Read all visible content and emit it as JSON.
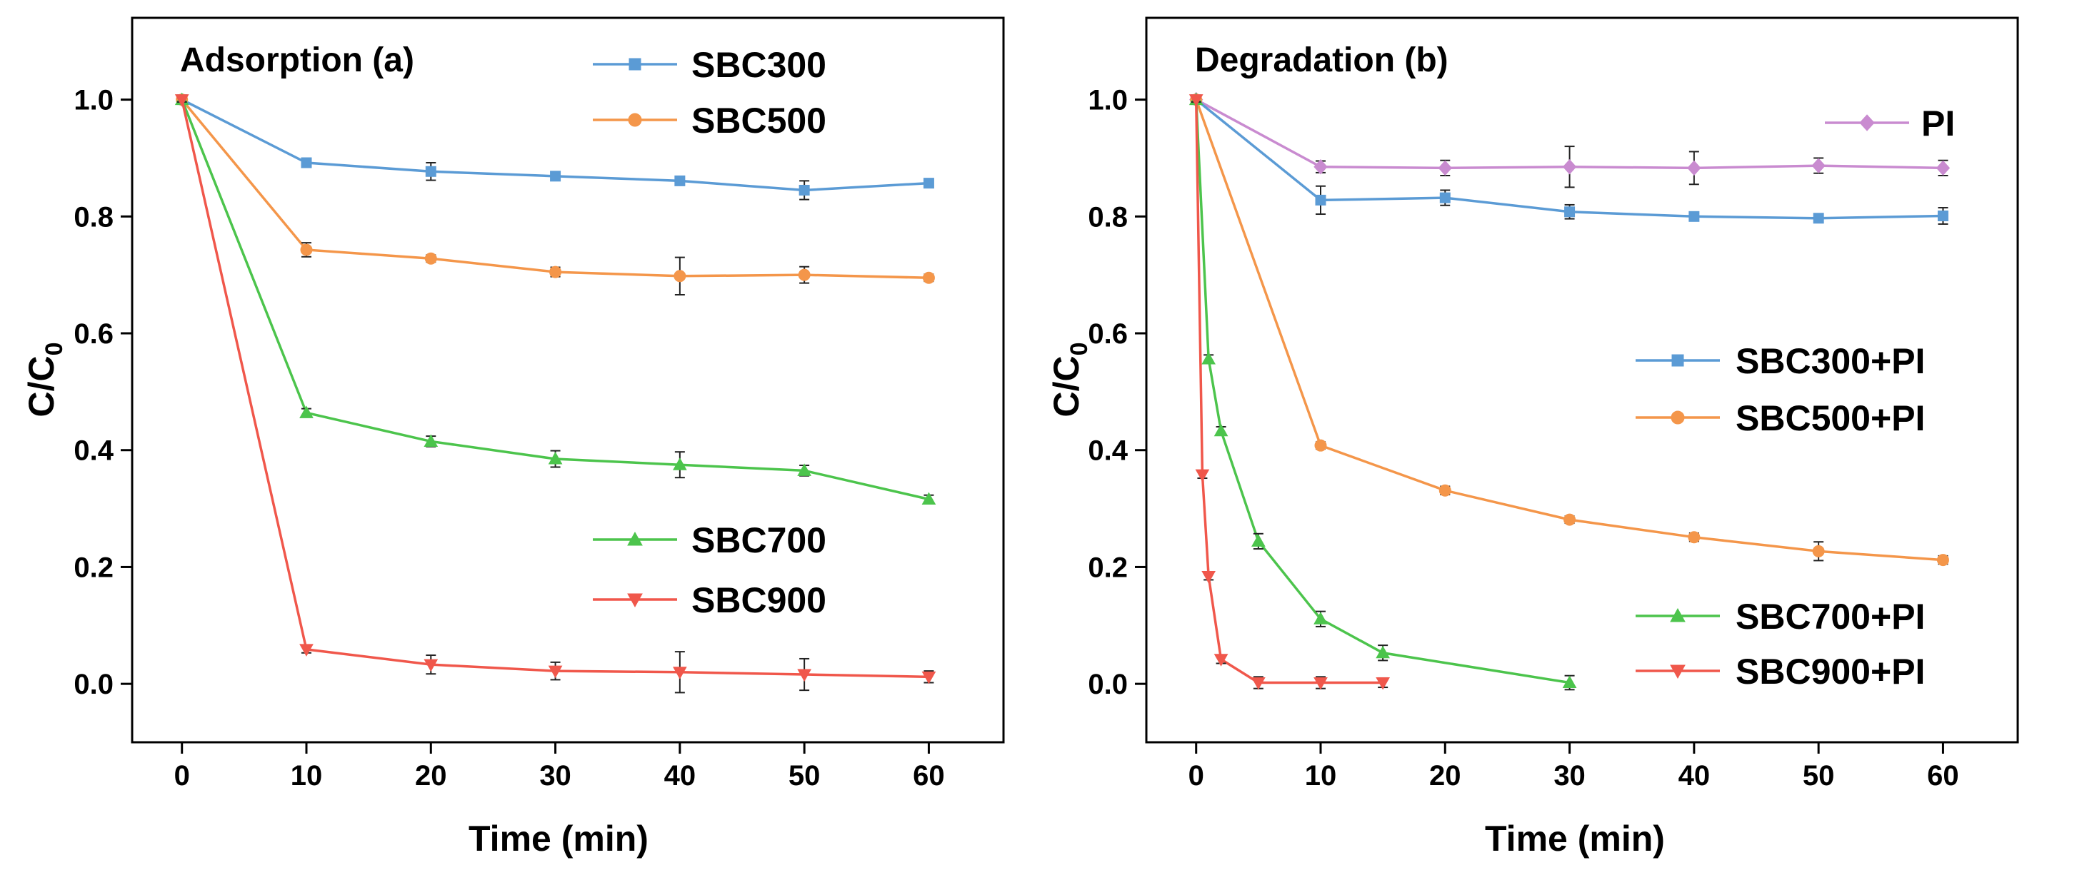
{
  "chart_data": [
    {
      "type": "line",
      "title": "Adsorption (a)",
      "xlabel": "Time (min)",
      "ylabel": "C/C0",
      "ylabel_main": "C/C",
      "ylabel_sub": "0",
      "xlim": [
        -4,
        66
      ],
      "ylim": [
        -0.1,
        1.14
      ],
      "xticks": [
        0,
        10,
        20,
        30,
        40,
        50,
        60
      ],
      "yticks": [
        0.0,
        0.2,
        0.4,
        0.6,
        0.8,
        1.0
      ],
      "xtick_labels": [
        "0",
        "10",
        "20",
        "30",
        "40",
        "50",
        "60"
      ],
      "ytick_labels": [
        "0.0",
        "0.2",
        "0.4",
        "0.6",
        "0.8",
        "1.0"
      ],
      "series": [
        {
          "name": "SBC300",
          "color": "#5b9bd5",
          "marker": "square",
          "x": [
            0,
            10,
            20,
            30,
            40,
            50,
            60
          ],
          "y": [
            1.0,
            0.892,
            0.877,
            0.869,
            0.861,
            0.845,
            0.857
          ],
          "err": [
            0.004,
            0.006,
            0.015,
            0.007,
            0.006,
            0.016,
            0.006
          ]
        },
        {
          "name": "SBC500",
          "color": "#f4964a",
          "marker": "circle",
          "x": [
            0,
            10,
            20,
            30,
            40,
            50,
            60
          ],
          "y": [
            1.0,
            0.743,
            0.728,
            0.705,
            0.698,
            0.7,
            0.695
          ],
          "err": [
            0.004,
            0.012,
            0.006,
            0.008,
            0.032,
            0.014,
            0.006
          ]
        },
        {
          "name": "SBC700",
          "color": "#4cc44c",
          "marker": "triangle-up",
          "x": [
            0,
            10,
            20,
            30,
            40,
            50,
            60
          ],
          "y": [
            1.0,
            0.464,
            0.415,
            0.385,
            0.375,
            0.365,
            0.316
          ],
          "err": [
            0.004,
            0.007,
            0.009,
            0.014,
            0.022,
            0.009,
            0.007
          ]
        },
        {
          "name": "SBC900",
          "color": "#f0574b",
          "marker": "triangle-down",
          "x": [
            0,
            10,
            20,
            30,
            40,
            50,
            60
          ],
          "y": [
            1.0,
            0.059,
            0.033,
            0.022,
            0.02,
            0.016,
            0.012
          ],
          "err": [
            0.004,
            0.006,
            0.016,
            0.015,
            0.035,
            0.027,
            0.01
          ]
        }
      ],
      "legend": [
        {
          "series": 0,
          "position": "top-center"
        },
        {
          "series": 1,
          "position": "top-center"
        },
        {
          "series": 2,
          "position": "lower-center"
        },
        {
          "series": 3,
          "position": "lower-center"
        }
      ]
    },
    {
      "type": "line",
      "title": "Degradation (b)",
      "xlabel": "Time (min)",
      "ylabel": "C/C0",
      "ylabel_main": "C/C",
      "ylabel_sub": "0",
      "xlim": [
        -4,
        66
      ],
      "ylim": [
        -0.1,
        1.14
      ],
      "xticks": [
        0,
        10,
        20,
        30,
        40,
        50,
        60
      ],
      "yticks": [
        0.0,
        0.2,
        0.4,
        0.6,
        0.8,
        1.0
      ],
      "xtick_labels": [
        "0",
        "10",
        "20",
        "30",
        "40",
        "50",
        "60"
      ],
      "ytick_labels": [
        "0.0",
        "0.2",
        "0.4",
        "0.6",
        "0.8",
        "1.0"
      ],
      "series": [
        {
          "name": "PI",
          "color": "#c98bd0",
          "marker": "diamond",
          "x": [
            0,
            10,
            20,
            30,
            40,
            50,
            60
          ],
          "y": [
            1.0,
            0.885,
            0.883,
            0.885,
            0.883,
            0.887,
            0.883
          ],
          "err": [
            0.004,
            0.01,
            0.013,
            0.035,
            0.028,
            0.013,
            0.013
          ]
        },
        {
          "name": "SBC300+PI",
          "color": "#5b9bd5",
          "marker": "square",
          "x": [
            0,
            10,
            20,
            30,
            40,
            50,
            60
          ],
          "y": [
            1.0,
            0.828,
            0.832,
            0.808,
            0.8,
            0.797,
            0.801
          ],
          "err": [
            0.004,
            0.024,
            0.013,
            0.012,
            0.006,
            0.006,
            0.014
          ]
        },
        {
          "name": "SBC500+PI",
          "color": "#f4964a",
          "marker": "circle",
          "x": [
            0,
            10,
            20,
            30,
            40,
            50,
            60
          ],
          "y": [
            1.0,
            0.408,
            0.331,
            0.281,
            0.251,
            0.227,
            0.212
          ],
          "err": [
            0.004,
            0.006,
            0.007,
            0.006,
            0.007,
            0.016,
            0.007
          ]
        },
        {
          "name": "SBC700+PI",
          "color": "#4cc44c",
          "marker": "triangle-up",
          "x": [
            0,
            1,
            2,
            5,
            10,
            15,
            30
          ],
          "y": [
            1.0,
            0.556,
            0.433,
            0.244,
            0.111,
            0.053,
            0.002
          ],
          "err": [
            0.004,
            0.007,
            0.007,
            0.013,
            0.013,
            0.013,
            0.012
          ]
        },
        {
          "name": "SBC900+PI",
          "color": "#f0574b",
          "marker": "triangle-down",
          "x": [
            0,
            0.5,
            1,
            2,
            5,
            10,
            15
          ],
          "y": [
            1.0,
            0.358,
            0.184,
            0.042,
            0.002,
            0.002,
            0.002
          ],
          "err": [
            0.004,
            0.006,
            0.006,
            0.007,
            0.01,
            0.01,
            0.008
          ]
        }
      ],
      "legend": [
        {
          "series": 0,
          "position": "top-right"
        },
        {
          "series": 1,
          "position": "center-right"
        },
        {
          "series": 2,
          "position": "center-right"
        },
        {
          "series": 3,
          "position": "bottom-right"
        },
        {
          "series": 4,
          "position": "bottom-right"
        }
      ]
    }
  ]
}
